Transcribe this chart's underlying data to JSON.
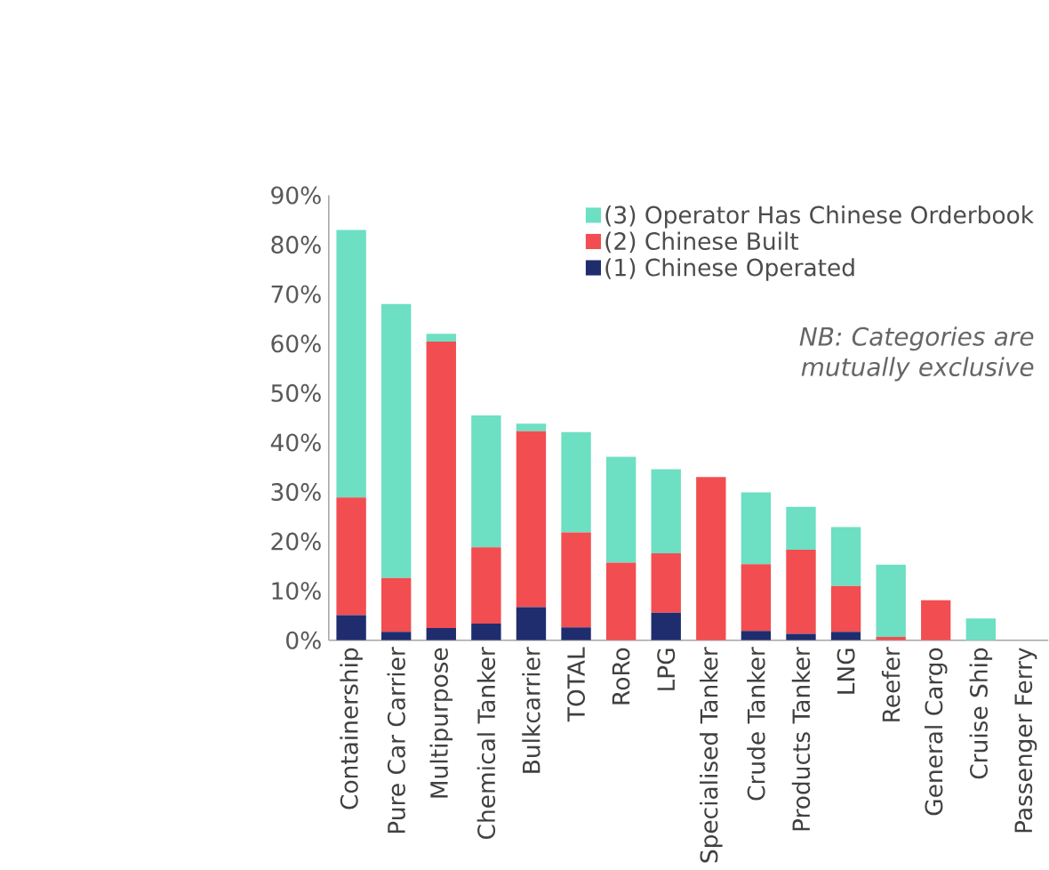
{
  "chart_data": {
    "type": "bar",
    "stacked": true,
    "categories": [
      "Containership",
      "Pure Car Carrier",
      "Multipurpose",
      "Chemical Tanker",
      "Bulkcarrier",
      "TOTAL",
      "RoRo",
      "LPG",
      "Specialised Tanker",
      "Crude Tanker",
      "Products Tanker",
      "LNG",
      "Reefer",
      "General Cargo",
      "Cruise Ship",
      "Passenger Ferry"
    ],
    "series": [
      {
        "name": "(1) Chinese Operated",
        "color": "#1f2d6e",
        "values": [
          5.1,
          1.7,
          2.5,
          3.4,
          6.7,
          2.6,
          0,
          5.6,
          0,
          1.9,
          1.3,
          1.7,
          0,
          0,
          0,
          0
        ]
      },
      {
        "name": "(2) Chinese Built",
        "color": "#f24d50",
        "values": [
          23.8,
          10.9,
          57.9,
          15.4,
          35.6,
          19.2,
          15.7,
          12.0,
          33.0,
          13.5,
          17.0,
          9.3,
          0.7,
          8.1,
          0,
          0
        ]
      },
      {
        "name": "(3) Operator Has Chinese Orderbook",
        "color": "#6ddfc2",
        "values": [
          54.1,
          55.4,
          1.6,
          26.7,
          1.5,
          20.3,
          21.4,
          17.0,
          0,
          14.5,
          8.7,
          11.9,
          14.6,
          0,
          4.4,
          0
        ]
      }
    ],
    "ylim": [
      0,
      90
    ],
    "yticks": [
      {
        "value": 0,
        "label": "0%"
      },
      {
        "value": 10,
        "label": "10%"
      },
      {
        "value": 20,
        "label": "20%"
      },
      {
        "value": 30,
        "label": "30%"
      },
      {
        "value": 40,
        "label": "40%"
      },
      {
        "value": 50,
        "label": "50%"
      },
      {
        "value": 60,
        "label": "60%"
      },
      {
        "value": 70,
        "label": "70%"
      },
      {
        "value": 80,
        "label": "80%"
      },
      {
        "value": 90,
        "label": "90%"
      }
    ],
    "legend": "top right",
    "annotations": [
      "NB: Categories are mutually exclusive"
    ]
  }
}
